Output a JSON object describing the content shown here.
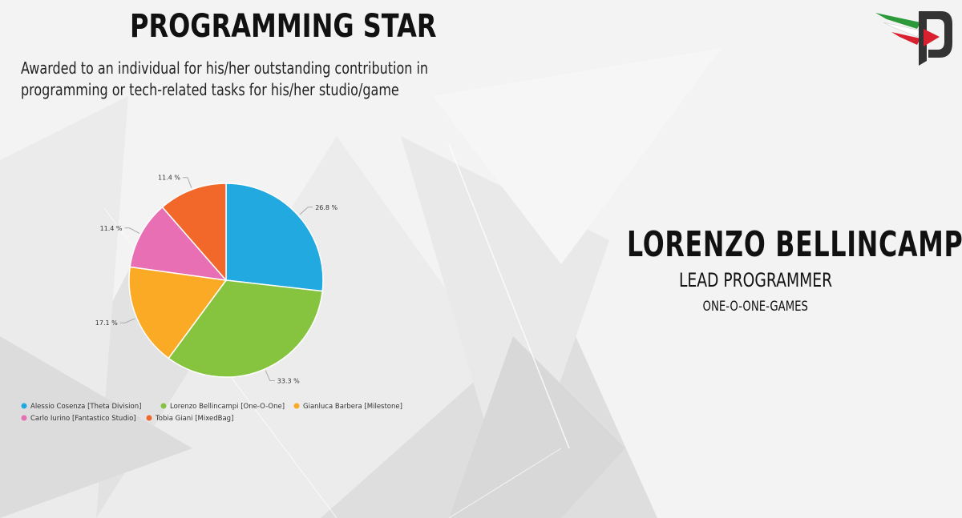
{
  "title": "PROGRAMMING STAR",
  "subtitle": "Awarded to an individual for his/her outstanding contribution in programming or tech-related tasks for his/her studio/game",
  "winner": {
    "name": "LORENZO BELLINCAMPI",
    "role": "LEAD PROGRAMMER",
    "studio": "ONE-O-ONE-GAMES"
  },
  "colors": {
    "accent_red": "#d9202e",
    "accent_green": "#2c9a3a",
    "logo_dark": "#333333"
  },
  "chart_data": {
    "type": "pie",
    "title": "",
    "legend_position": "bottom-left",
    "slices": [
      {
        "label": "Alessio Cosenza [Theta Division]",
        "value": 26.8,
        "display": "26.8 %",
        "color": "#22a9e0"
      },
      {
        "label": "Lorenzo Bellincampi [One-O-One]",
        "value": 33.3,
        "display": "33.3 %",
        "color": "#86c440"
      },
      {
        "label": "Gianluca Barbera [Milestone]",
        "value": 17.1,
        "display": "17.1 %",
        "color": "#fbaa25"
      },
      {
        "label": "Carlo Iurino [Fantastico Studio]",
        "value": 11.4,
        "display": "11.4 %",
        "color": "#e86fb3"
      },
      {
        "label": "Tobia Giani [MixedBag]",
        "value": 11.4,
        "display": "11.4 %",
        "color": "#f2672a"
      }
    ]
  }
}
